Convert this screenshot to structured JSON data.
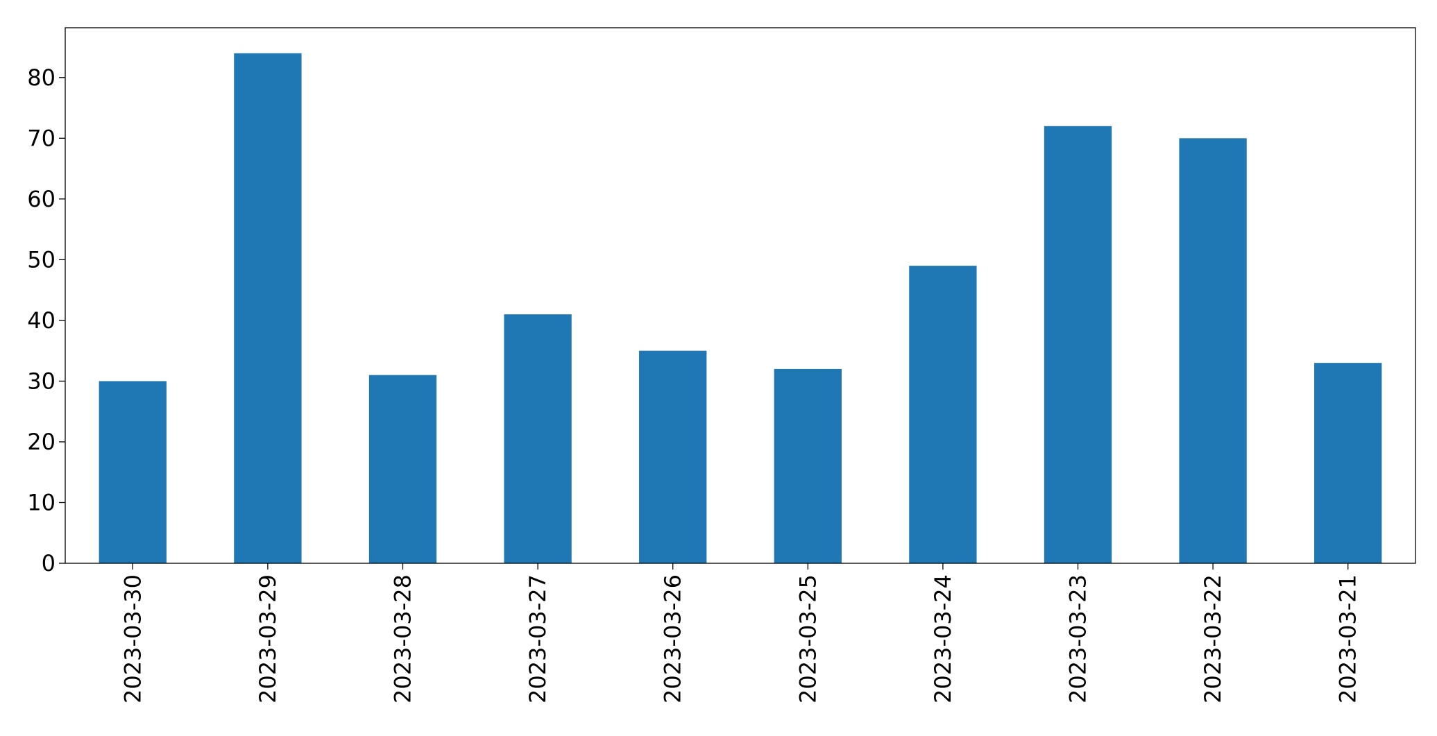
{
  "chart_data": {
    "type": "bar",
    "categories": [
      "2023-03-30",
      "2023-03-29",
      "2023-03-28",
      "2023-03-27",
      "2023-03-26",
      "2023-03-25",
      "2023-03-24",
      "2023-03-23",
      "2023-03-22",
      "2023-03-21"
    ],
    "values": [
      30,
      84,
      31,
      41,
      35,
      32,
      49,
      72,
      70,
      33
    ],
    "color": "#1f77b4",
    "ylim": [
      0,
      88.2
    ],
    "yticks": [
      0,
      10,
      20,
      30,
      40,
      50,
      60,
      70,
      80
    ],
    "grid": false
  }
}
